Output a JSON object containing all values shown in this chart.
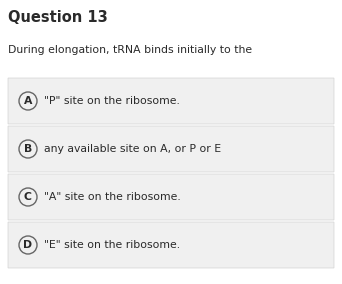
{
  "title": "Question 13",
  "question": "During elongation, tRNA binds initially to the",
  "options": [
    {
      "label": "A",
      "text": "\"P\" site on the ribosome."
    },
    {
      "label": "B",
      "text": "any available site on A, or P or E"
    },
    {
      "label": "C",
      "text": "\"A\" site on the ribosome."
    },
    {
      "label": "D",
      "text": "\"E\" site on the ribosome."
    }
  ],
  "bg_color": "#ffffff",
  "option_bg_color": "#f0f0f0",
  "option_border_color": "#cccccc",
  "title_color": "#2a2a2a",
  "question_color": "#2a2a2a",
  "option_text_color": "#2a2a2a",
  "circle_edge_color": "#666666",
  "title_fontsize": 10.5,
  "question_fontsize": 7.8,
  "option_fontsize": 7.8,
  "label_fontsize": 7.8,
  "fig_width": 3.42,
  "fig_height": 2.84,
  "dpi": 100
}
